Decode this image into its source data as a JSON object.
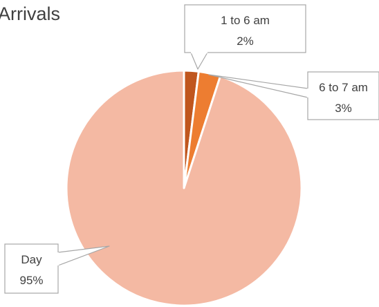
{
  "chart_data": {
    "type": "pie",
    "title": "Arrivals",
    "slices": [
      {
        "label": "1 to 6 am",
        "value": 2,
        "value_label": "2%",
        "color": "#C0561E"
      },
      {
        "label": "6 to 7 am",
        "value": 3,
        "value_label": "3%",
        "color": "#ED7D31"
      },
      {
        "label": "Day",
        "value": 95,
        "value_label": "95%",
        "color": "#F4B9A3"
      }
    ],
    "start_angle_deg": 0,
    "direction": "clockwise",
    "slice_border_color": "#ffffff",
    "data_labels": "callouts with leader lines",
    "callout_border_color": "#A6A6A6"
  }
}
